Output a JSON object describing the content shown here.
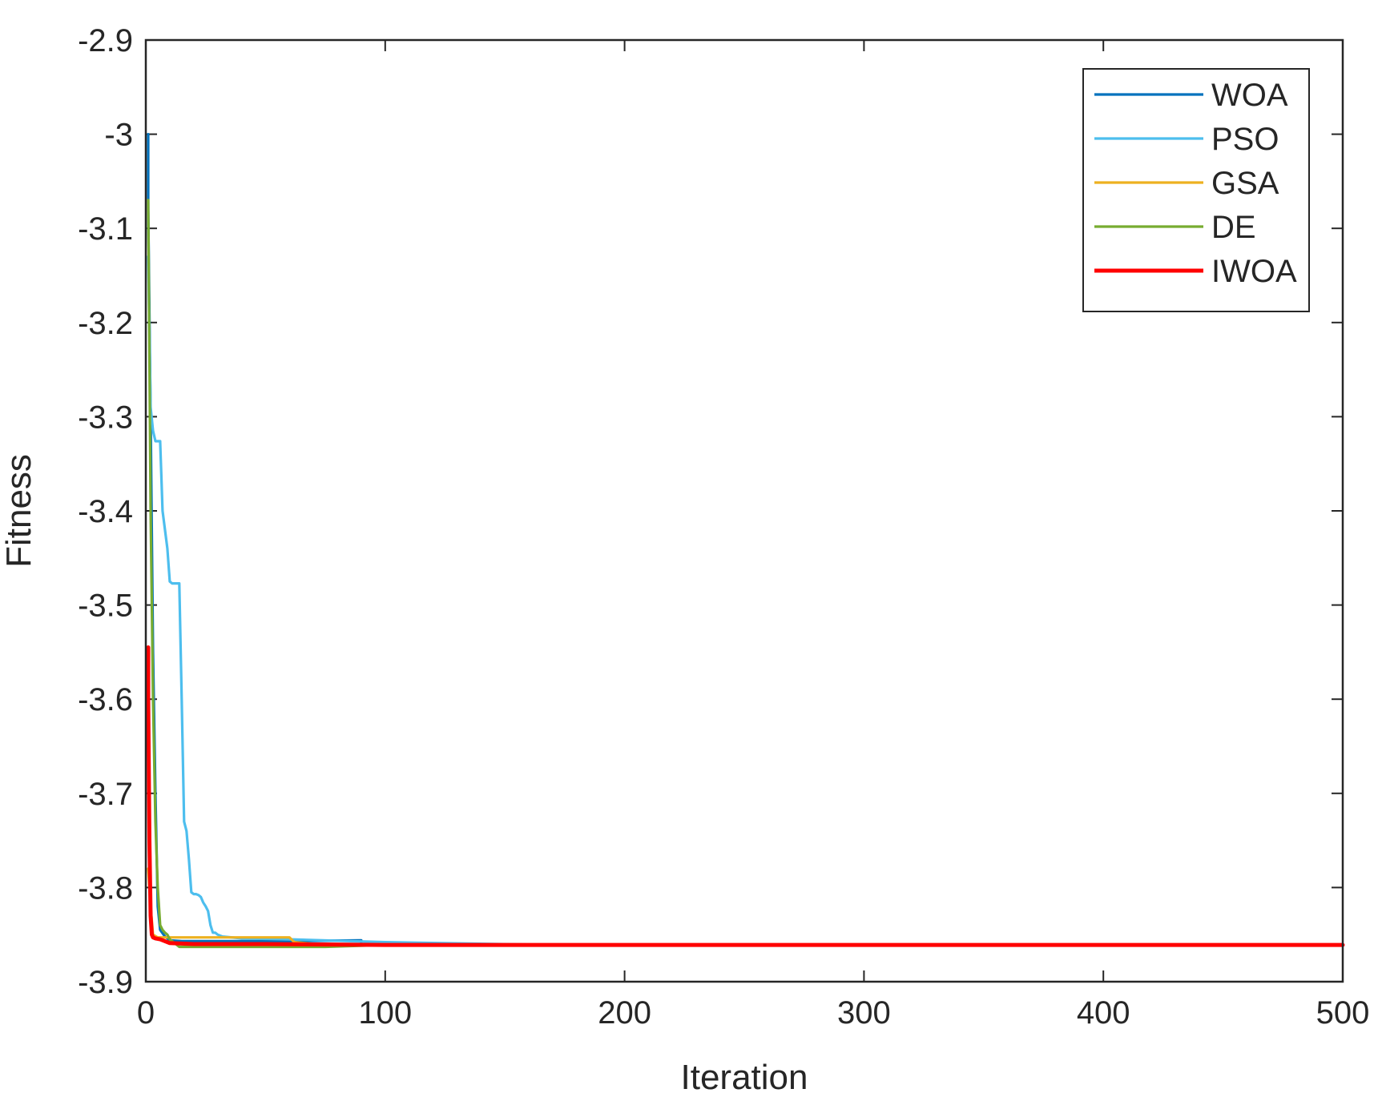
{
  "chart_data": {
    "type": "line",
    "title": "",
    "xlabel": "Iteration",
    "ylabel": "Fitness",
    "xlim": [
      0,
      500
    ],
    "ylim": [
      -3.9,
      -2.9
    ],
    "xticks": [
      0,
      100,
      200,
      300,
      400,
      500
    ],
    "xtick_labels": [
      "0",
      "100",
      "200",
      "300",
      "400",
      "500"
    ],
    "yticks": [
      -3.9,
      -3.8,
      -3.7,
      -3.6,
      -3.5,
      -3.4,
      -3.3,
      -3.2,
      -3.1,
      -3.0,
      -2.9
    ],
    "ytick_labels": [
      "-3.9",
      "-3.8",
      "-3.7",
      "-3.6",
      "-3.5",
      "-3.4",
      "-3.3",
      "-3.2",
      "-3.1",
      "-3",
      "-2.9"
    ],
    "grid": false,
    "legend_position": "top-right",
    "series": [
      {
        "name": "WOA",
        "color": "#0072BD",
        "x": [
          1,
          1,
          2,
          3,
          4,
          5,
          6,
          8,
          10,
          15,
          30,
          60,
          90,
          90,
          500
        ],
        "y": [
          -3.0,
          -3.08,
          -3.3,
          -3.55,
          -3.7,
          -3.82,
          -3.845,
          -3.852,
          -3.856,
          -3.857,
          -3.857,
          -3.857,
          -3.856,
          -3.861,
          -3.861
        ]
      },
      {
        "name": "PSO",
        "color": "#4DBEEE",
        "x": [
          1,
          2,
          3,
          4,
          5,
          6,
          7,
          8,
          9,
          10,
          11,
          12,
          13,
          14,
          15,
          16,
          17,
          18,
          19,
          20,
          21,
          22,
          23,
          24,
          25,
          26,
          27,
          28,
          29,
          30,
          32,
          40,
          60,
          100,
          170,
          500
        ],
        "y": [
          -3.13,
          -3.29,
          -3.315,
          -3.326,
          -3.326,
          -3.326,
          -3.4,
          -3.42,
          -3.44,
          -3.475,
          -3.477,
          -3.477,
          -3.477,
          -3.477,
          -3.6,
          -3.73,
          -3.74,
          -3.77,
          -3.805,
          -3.807,
          -3.807,
          -3.808,
          -3.81,
          -3.816,
          -3.82,
          -3.825,
          -3.84,
          -3.848,
          -3.848,
          -3.85,
          -3.852,
          -3.854,
          -3.855,
          -3.858,
          -3.861,
          -3.861
        ]
      },
      {
        "name": "GSA",
        "color": "#EDB120",
        "x": [
          1,
          2,
          3,
          5,
          10,
          30,
          60,
          62,
          75,
          500
        ],
        "y": [
          -3.78,
          -3.82,
          -3.85,
          -3.853,
          -3.853,
          -3.853,
          -3.853,
          -3.858,
          -3.861,
          -3.861
        ]
      },
      {
        "name": "DE",
        "color": "#77AC30",
        "x": [
          1,
          2,
          3,
          4,
          5,
          6,
          7,
          8,
          9,
          10,
          12,
          14,
          20,
          40,
          75,
          100,
          500
        ],
        "y": [
          -3.07,
          -3.4,
          -3.6,
          -3.73,
          -3.8,
          -3.84,
          -3.845,
          -3.848,
          -3.85,
          -3.855,
          -3.859,
          -3.863,
          -3.863,
          -3.863,
          -3.863,
          -3.861,
          -3.861
        ]
      },
      {
        "name": "IWOA",
        "color": "#FF0000",
        "x": [
          1,
          1,
          1.5,
          2,
          2.5,
          3,
          4,
          6,
          8,
          10,
          20,
          50,
          100,
          200,
          500
        ],
        "y": [
          -3.545,
          -3.6,
          -3.75,
          -3.83,
          -3.85,
          -3.853,
          -3.854,
          -3.855,
          -3.857,
          -3.859,
          -3.86,
          -3.86,
          -3.861,
          -3.861,
          -3.861
        ]
      }
    ]
  }
}
